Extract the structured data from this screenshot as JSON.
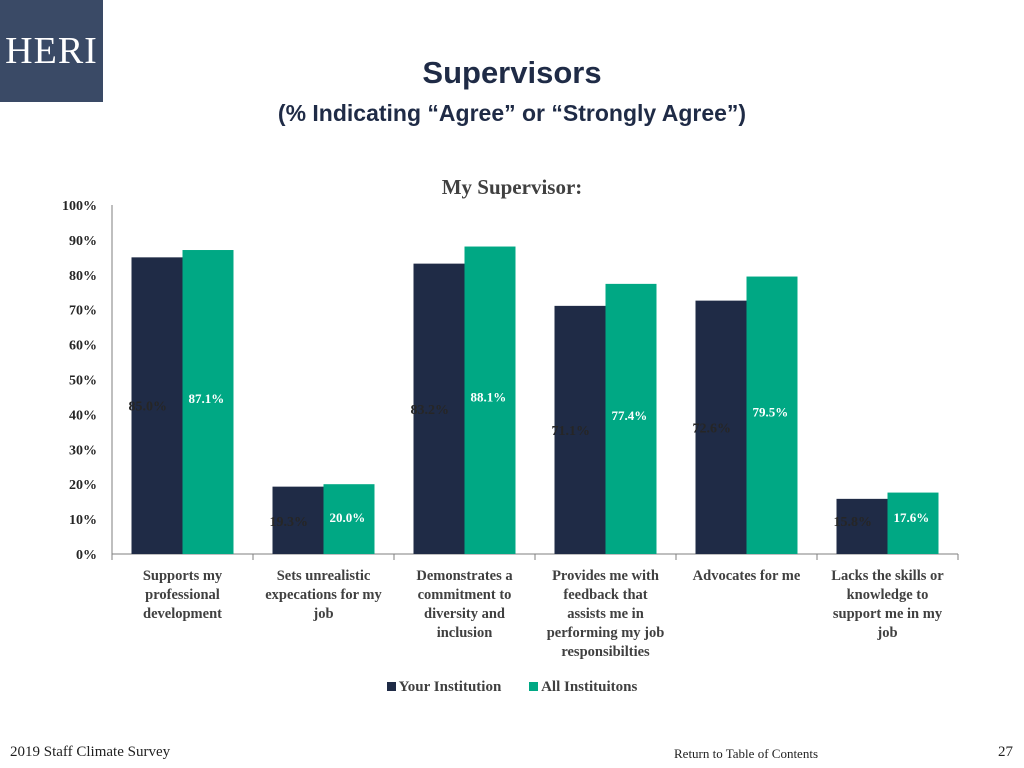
{
  "logo_text": "HERI",
  "slide": {
    "title": "Supervisors",
    "subtitle": "(% Indicating “Agree” or “Strongly Agree”)"
  },
  "colors": {
    "your_institution": "#1f2b46",
    "all_institutions": "#00a884",
    "logo_bg": "#3a4a66"
  },
  "chart_data": {
    "type": "bar",
    "title": "My Supervisor:",
    "categories": [
      [
        "Supports my",
        "professional",
        "development"
      ],
      [
        "Sets unrealistic",
        "expecations for my",
        "job"
      ],
      [
        "Demonstrates a",
        "commitment to",
        "diversity and",
        "inclusion"
      ],
      [
        "Provides me with",
        "feedback that",
        "assists me in",
        "performing my job",
        "responsibilties"
      ],
      [
        "Advocates for me"
      ],
      [
        "Lacks the skills or",
        "knowledge to",
        "support me in my",
        "job"
      ]
    ],
    "series": [
      {
        "name": "Your Institution",
        "values": [
          85.0,
          19.3,
          83.2,
          71.1,
          72.6,
          15.8
        ],
        "labels": [
          "85.0%",
          "19.3%",
          "83.2%",
          "71.1%",
          "72.6%",
          "15.8%"
        ]
      },
      {
        "name": "All Instituitons",
        "values": [
          87.1,
          20.0,
          88.1,
          77.4,
          79.5,
          17.6
        ],
        "labels": [
          "87.1%",
          "20.0%",
          "88.1%",
          "77.4%",
          "79.5%",
          "17.6%"
        ]
      }
    ],
    "yticks": [
      "0%",
      "10%",
      "20%",
      "30%",
      "40%",
      "50%",
      "60%",
      "70%",
      "80%",
      "90%",
      "100%"
    ],
    "ylim": [
      0,
      100
    ],
    "grid": false,
    "legend_position": "bottom"
  },
  "footer": {
    "left": "2019 Staff  Climate Survey",
    "link": "Return to Table of Contents",
    "page": "27"
  }
}
